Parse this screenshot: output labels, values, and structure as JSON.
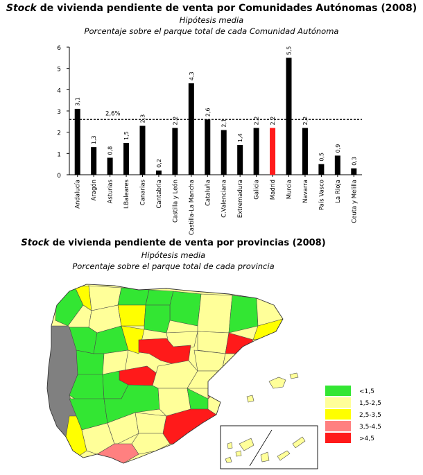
{
  "chart_data": [
    {
      "type": "bar",
      "title_stock": "Stock",
      "title_rest": " de vivienda pendiente de venta por Comunidades Autónomas (2008)",
      "subtitle": "Hipótesis media",
      "subtitle2": "Porcentaje sobre el parque total de cada Comunidad Autónoma",
      "ylim": [
        0,
        6
      ],
      "yticks": [
        "0",
        "1",
        "2",
        "3",
        "4",
        "5",
        "6"
      ],
      "categories": [
        "Andalucía",
        "Aragón",
        "Asturias",
        "I.Baleares",
        "Canarias",
        "Cantabria",
        "Castilla y León",
        "Castilla-La Mancha",
        "Cataluña",
        "C.Valenciana",
        "Extremadura",
        "Galicia",
        "Madrid",
        "Murcia",
        "Navarra",
        "País Vasco",
        "La Rioja",
        "Ceuta y Melilla"
      ],
      "values": [
        3.1,
        1.3,
        0.8,
        1.5,
        2.3,
        0.2,
        2.2,
        4.3,
        2.6,
        2.1,
        1.4,
        2.2,
        2.2,
        5.5,
        2.2,
        0.5,
        0.9,
        0.3
      ],
      "value_labels": [
        "3,1",
        "1,3",
        "0,8",
        "1,5",
        "2,3",
        "0,2",
        "2,2",
        "4,3",
        "2,6",
        "2,1",
        "1,4",
        "2,2",
        "2,2",
        "5,5",
        "2,2",
        "0,5",
        "0,9",
        "0,3"
      ],
      "bar_color": "#000000",
      "highlight_category": "Madrid",
      "highlight_color": "#ff1a1a",
      "reference_line": {
        "value": 2.6,
        "label": "2,6%",
        "style": "dashed"
      }
    },
    {
      "type": "choropleth-map",
      "title_stock": "Stock",
      "title_rest": " de vivienda pendiente de venta por provincias (2008)",
      "subtitle": "Hipótesis media",
      "subtitle2": "Porcentaje sobre el parque total de cada provincia",
      "legend": [
        {
          "label": "<1,5",
          "color": "#33e633"
        },
        {
          "label": "1,5-2,5",
          "color": "#ffff99"
        },
        {
          "label": "2,5-3,5",
          "color": "#ffff00"
        },
        {
          "label": "3,5-4,5",
          "color": "#ff8080"
        },
        {
          "label": ">4,5",
          "color": "#ff1a1a"
        }
      ],
      "no_data_color": "#808080"
    }
  ]
}
